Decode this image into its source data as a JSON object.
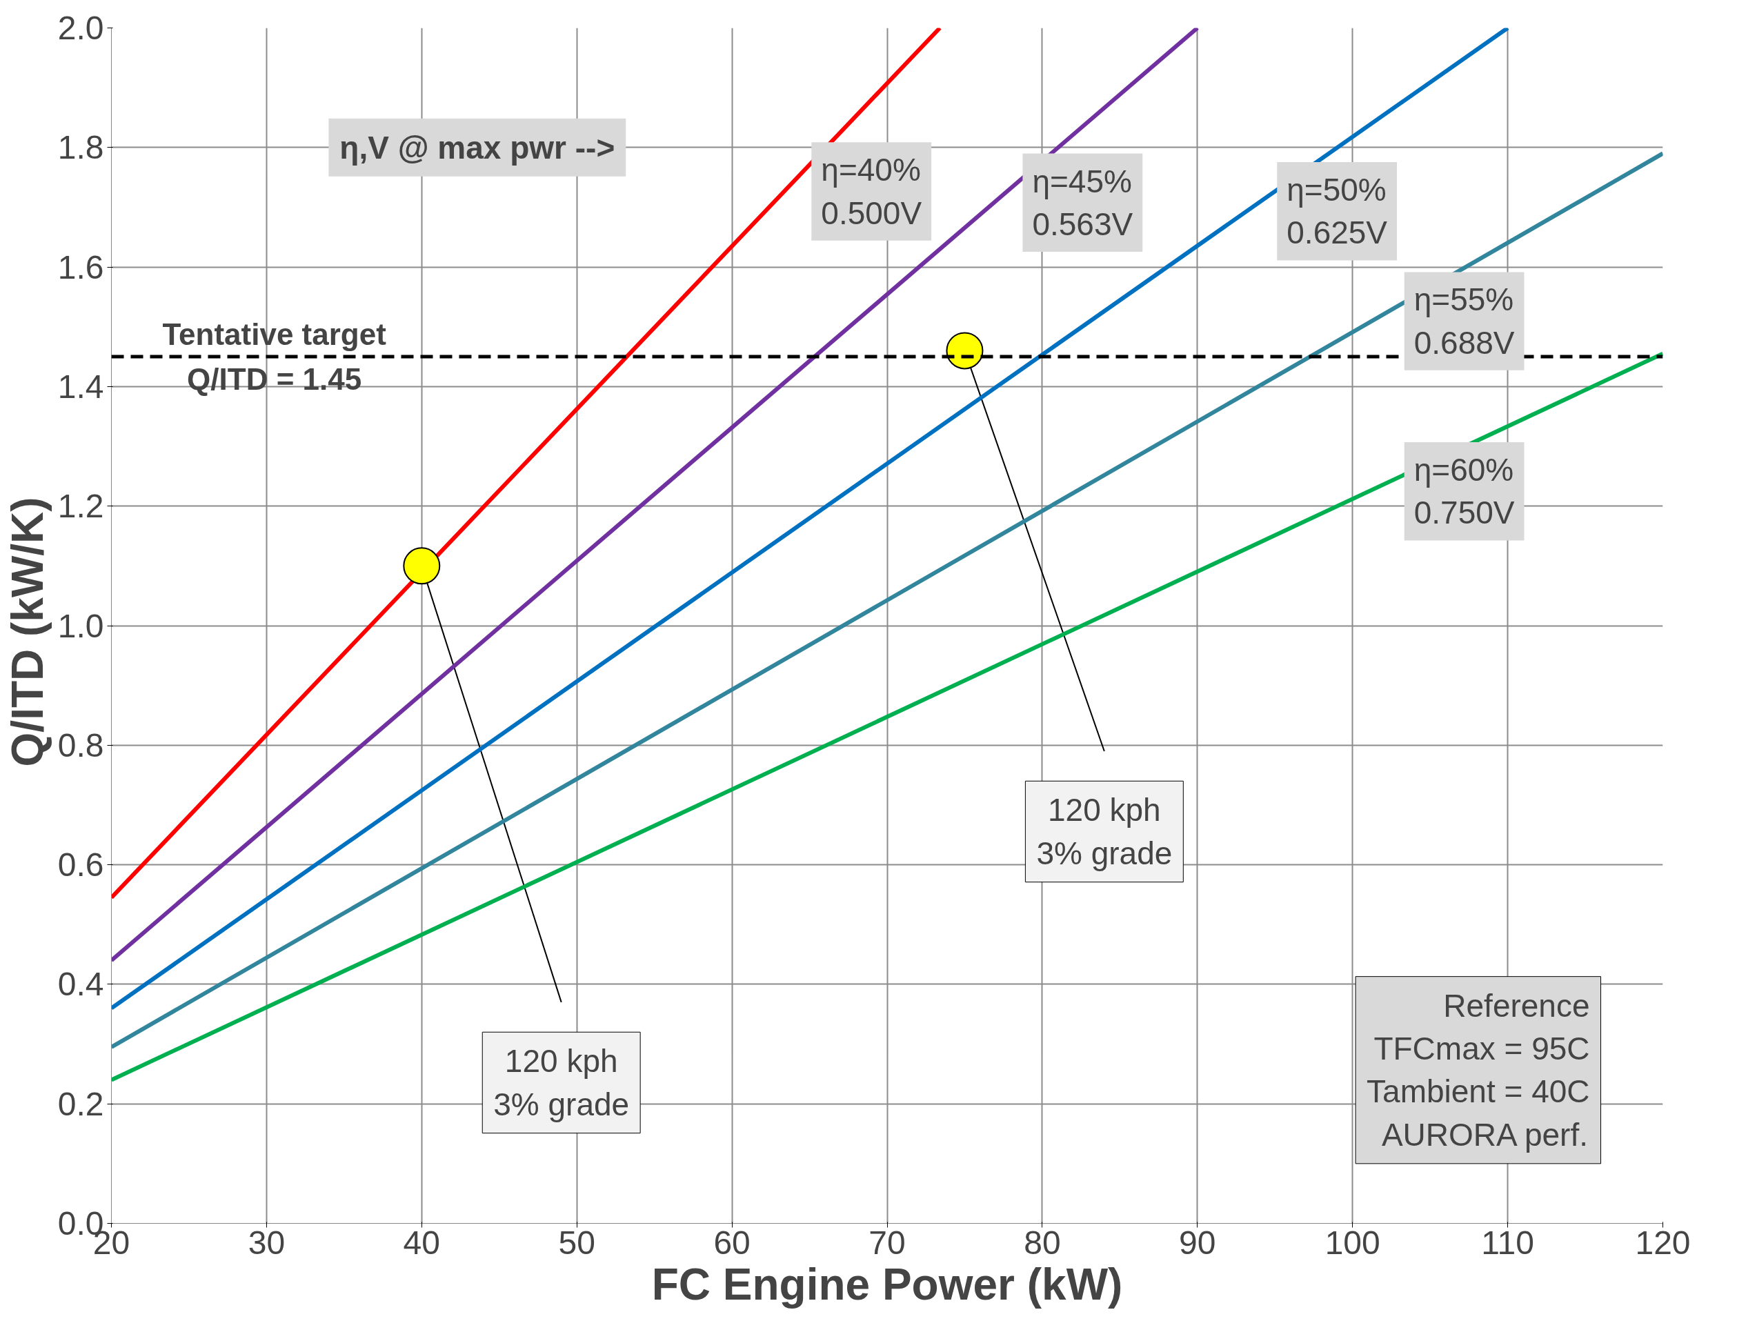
{
  "chart_data": {
    "type": "line",
    "xlabel": "FC Engine Power (kW)",
    "ylabel": "Q/ITD  (kW/K)",
    "xlim": [
      20,
      120
    ],
    "ylim": [
      0,
      2.0
    ],
    "xticks": [
      20,
      30,
      40,
      50,
      60,
      70,
      80,
      90,
      100,
      110,
      120
    ],
    "yticks": [
      {
        "value": 0,
        "label": "0.0"
      },
      {
        "value": 0.2,
        "label": "0.2"
      },
      {
        "value": 0.4,
        "label": "0.4"
      },
      {
        "value": 0.6,
        "label": "0.6"
      },
      {
        "value": 0.8,
        "label": "0.8"
      },
      {
        "value": 1.0,
        "label": "1.0"
      },
      {
        "value": 1.2,
        "label": "1.2"
      },
      {
        "value": 1.4,
        "label": "1.4"
      },
      {
        "value": 1.6,
        "label": "1.6"
      },
      {
        "value": 1.8,
        "label": "1.8"
      },
      {
        "value": 2.0,
        "label": "2.0"
      }
    ],
    "grid": true,
    "marker": "none",
    "line_style": "solid",
    "series": [
      {
        "name": "η=40%\n0.500V",
        "color": "#ff0000",
        "x": [
          20,
          73.4
        ],
        "values": [
          0.545,
          2.0
        ]
      },
      {
        "name": "η=45%\n0.563V",
        "color": "#7030a0",
        "x": [
          20,
          90
        ],
        "values": [
          0.44,
          2.0
        ]
      },
      {
        "name": "η=50%\n0.625V",
        "color": "#0070c0",
        "x": [
          20,
          110
        ],
        "values": [
          0.36,
          2.0
        ]
      },
      {
        "name": "η=55%\n0.688V",
        "color": "#31859c",
        "x": [
          20,
          120
        ],
        "values": [
          0.295,
          1.79
        ]
      },
      {
        "name": "η=60%\n0.750V",
        "color": "#00b050",
        "x": [
          20,
          120
        ],
        "values": [
          0.24,
          1.455
        ]
      },
      {
        "type": "scatter",
        "marker": "circle",
        "color": "#ffff00",
        "x": [
          40,
          75
        ],
        "values": [
          1.1,
          1.46
        ]
      }
    ],
    "ref_lines": [
      {
        "axis": "y",
        "value": 1.45,
        "label": "Tentative target\nQ/ITD = 1.45",
        "color": "#000000",
        "line_style": "dashed"
      }
    ],
    "annotations": [
      {
        "text": "120 kph\n3% grade",
        "x": 40,
        "y": 1.1
      },
      {
        "text": "120 kph\n3% grade",
        "x": 75,
        "y": 1.46
      },
      "η,V @ max pwr -->",
      "Reference\nTFCmax = 95C\nTambient = 40C\nAURORA perf."
    ]
  }
}
